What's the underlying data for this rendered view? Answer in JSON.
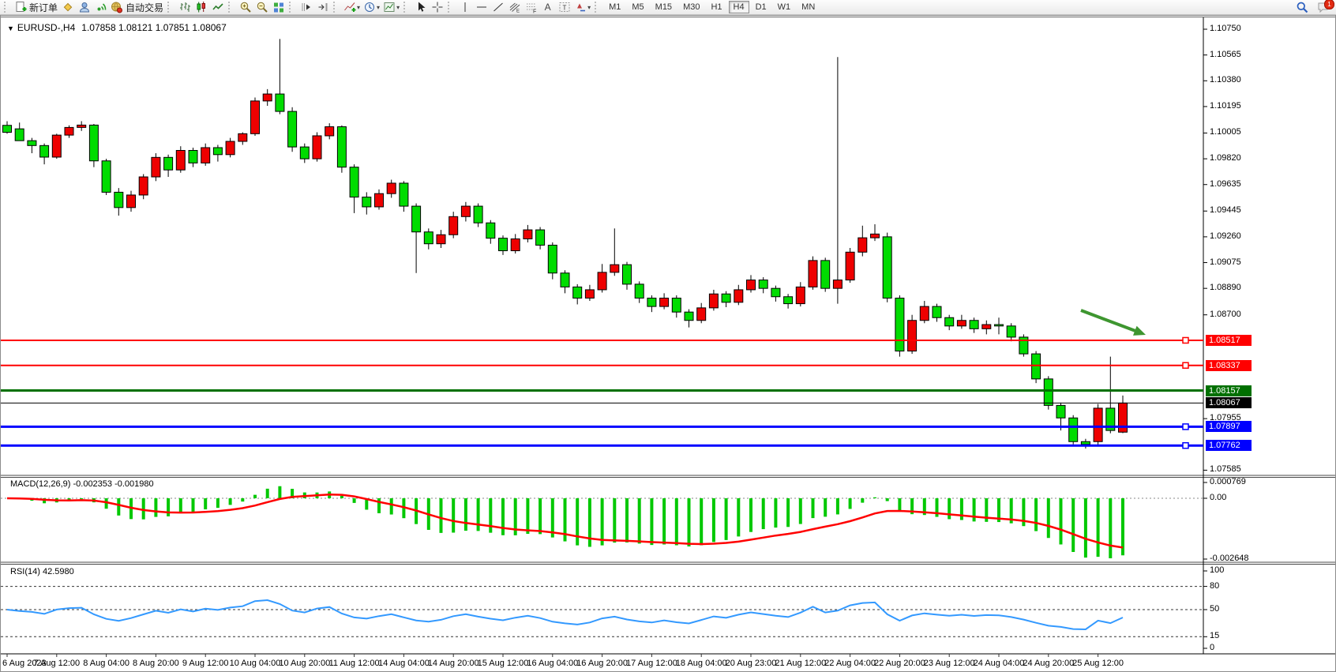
{
  "toolbar": {
    "new_order_label": "新订单",
    "auto_trading_label": "自动交易",
    "timeframes": [
      "M1",
      "M5",
      "M15",
      "M30",
      "H1",
      "H4",
      "D1",
      "W1",
      "MN"
    ],
    "active_timeframe": "H4",
    "notification_badge": "1",
    "text_tool_label": "A",
    "textbox_tool_label": "T",
    "grid_tool_label": "F",
    "channel_tool_label": "E"
  },
  "chart": {
    "title_symbol": "EURUSD-,H4",
    "title_ohlc": "1.07858 1.08121 1.07851 1.08067"
  },
  "price_axis": {
    "ticks": [
      "1.10750",
      "1.10565",
      "1.10380",
      "1.10195",
      "1.10005",
      "1.09820",
      "1.09635",
      "1.09445",
      "1.09260",
      "1.09075",
      "1.08890",
      "1.08700",
      "1.07955",
      "1.07585"
    ]
  },
  "macd_panel": {
    "label": "MACD(12,26,9)",
    "values": "-0.002353 -0.001980",
    "axis_labels": [
      "0.000769",
      "0.00",
      "-0.002648"
    ]
  },
  "rsi_panel": {
    "label": "RSI(14)",
    "value": "42.5980",
    "axis_labels": [
      "100",
      "80",
      "50",
      "15",
      "0"
    ]
  },
  "time_axis": {
    "labels": [
      "6 Aug 2023",
      "7 Aug 12:00",
      "8 Aug 04:00",
      "8 Aug 20:00",
      "9 Aug 12:00",
      "10 Aug 04:00",
      "10 Aug 20:00",
      "11 Aug 12:00",
      "14 Aug 04:00",
      "14 Aug 20:00",
      "15 Aug 12:00",
      "16 Aug 04:00",
      "16 Aug 20:00",
      "17 Aug 12:00",
      "18 Aug 04:00",
      "20 Aug 23:00",
      "21 Aug 12:00",
      "22 Aug 04:00",
      "22 Aug 20:00",
      "23 Aug 12:00",
      "24 Aug 04:00",
      "24 Aug 20:00",
      "25 Aug 12:00"
    ]
  },
  "colors": {
    "bull_body": "#EE0000",
    "bear_body": "#00DC00",
    "wick": "#000000",
    "macd_histogram": "#00C800",
    "macd_signal": "#FF0000",
    "rsi_line": "#3399FF",
    "background": "#FFFFFF"
  },
  "chart_data": {
    "type": "candlestick",
    "symbol": "EURUSD-",
    "timeframe": "H4",
    "last_ohlc": {
      "open": 1.07858,
      "high": 1.08121,
      "low": 1.07851,
      "close": 1.08067
    },
    "visible_price_range": [
      1.07585,
      1.1075
    ],
    "candles": [
      [
        1.1006,
        1.1009,
        1.1,
        1.1001
      ],
      [
        1.10035,
        1.1008,
        1.0999,
        1.0995
      ],
      [
        1.0995,
        1.0997,
        1.0986,
        1.09915
      ],
      [
        1.09915,
        1.0993,
        1.0978,
        1.09832
      ],
      [
        1.09832,
        1.1,
        1.0982,
        1.0999
      ],
      [
        1.0999,
        1.1006,
        1.0997,
        1.10045
      ],
      [
        1.10045,
        1.1009,
        1.1002,
        1.10062
      ],
      [
        1.10062,
        1.1007,
        1.0976,
        1.09805
      ],
      [
        1.09805,
        1.0982,
        1.0956,
        1.0958
      ],
      [
        1.0958,
        1.0961,
        1.09412,
        1.0947
      ],
      [
        1.0947,
        1.0959,
        1.0944,
        1.0956
      ],
      [
        1.0956,
        1.0971,
        1.0953,
        1.0969
      ],
      [
        1.0969,
        1.0986,
        1.0966,
        1.0983
      ],
      [
        1.0983,
        1.0985,
        1.0969,
        1.0974
      ],
      [
        1.0974,
        1.0991,
        1.0972,
        1.0988
      ],
      [
        1.0988,
        1.099,
        1.0976,
        1.0979
      ],
      [
        1.0979,
        1.0993,
        1.0977,
        1.099
      ],
      [
        1.099,
        1.0992,
        1.098,
        1.0985
      ],
      [
        1.0985,
        1.0997,
        1.0983,
        1.09945
      ],
      [
        1.09945,
        1.1001,
        1.0992,
        1.1
      ],
      [
        1.1,
        1.1026,
        1.09985,
        1.10235
      ],
      [
        1.10235,
        1.1032,
        1.102,
        1.10285
      ],
      [
        1.10285,
        1.1068,
        1.1014,
        1.1016
      ],
      [
        1.1016,
        1.1019,
        1.0987,
        1.09905
      ],
      [
        1.09905,
        1.0993,
        1.0979,
        1.0982
      ],
      [
        1.0982,
        1.1001,
        1.098,
        1.09985
      ],
      [
        1.09985,
        1.10075,
        1.0996,
        1.1005
      ],
      [
        1.1005,
        1.1006,
        1.0972,
        1.0976
      ],
      [
        1.0976,
        1.0978,
        1.0943,
        1.09545
      ],
      [
        1.09545,
        1.0958,
        1.0942,
        1.09475
      ],
      [
        1.09475,
        1.096,
        1.09455,
        1.0957
      ],
      [
        1.0957,
        1.0967,
        1.0954,
        1.09645
      ],
      [
        1.09645,
        1.0966,
        1.0944,
        1.0948
      ],
      [
        1.0948,
        1.095,
        1.09,
        1.09295
      ],
      [
        1.09295,
        1.0932,
        1.0917,
        1.0921
      ],
      [
        1.0921,
        1.0931,
        1.0918,
        1.09275
      ],
      [
        1.09275,
        1.0944,
        1.0925,
        1.09405
      ],
      [
        1.09405,
        1.0951,
        1.0937,
        1.0948
      ],
      [
        1.0948,
        1.095,
        1.0933,
        1.0936
      ],
      [
        1.0936,
        1.0938,
        1.0921,
        1.0925
      ],
      [
        1.0925,
        1.0927,
        1.0913,
        1.0916
      ],
      [
        1.0916,
        1.0928,
        1.0914,
        1.09245
      ],
      [
        1.09245,
        1.09345,
        1.0922,
        1.0931
      ],
      [
        1.0931,
        1.0933,
        1.0917,
        1.092
      ],
      [
        1.092,
        1.0922,
        1.08955,
        1.09
      ],
      [
        1.09,
        1.0902,
        1.08855,
        1.089
      ],
      [
        1.089,
        1.0892,
        1.08775,
        1.0882
      ],
      [
        1.0882,
        1.08915,
        1.088,
        1.0888
      ],
      [
        1.0888,
        1.09065,
        1.0886,
        1.09005
      ],
      [
        1.09005,
        1.0932,
        1.0898,
        1.0906
      ],
      [
        1.0906,
        1.0908,
        1.0888,
        1.0892
      ],
      [
        1.0892,
        1.0894,
        1.08785,
        1.0882
      ],
      [
        1.0882,
        1.0884,
        1.0872,
        1.0876
      ],
      [
        1.0876,
        1.08855,
        1.0874,
        1.0882
      ],
      [
        1.0882,
        1.0884,
        1.0868,
        1.0872
      ],
      [
        1.0872,
        1.0874,
        1.0861,
        1.0866
      ],
      [
        1.0866,
        1.08785,
        1.0864,
        1.0875
      ],
      [
        1.0875,
        1.0888,
        1.0873,
        1.0885
      ],
      [
        1.0885,
        1.0887,
        1.08755,
        1.0879
      ],
      [
        1.0879,
        1.08915,
        1.0877,
        1.0888
      ],
      [
        1.0888,
        1.08985,
        1.0886,
        1.0895
      ],
      [
        1.0895,
        1.0897,
        1.08855,
        1.0889
      ],
      [
        1.0889,
        1.0891,
        1.08795,
        1.0883
      ],
      [
        1.0883,
        1.0885,
        1.08745,
        1.0878
      ],
      [
        1.0878,
        1.08935,
        1.0876,
        1.089
      ],
      [
        1.089,
        1.0912,
        1.0888,
        1.0909
      ],
      [
        1.0909,
        1.0911,
        1.08865,
        1.0889
      ],
      [
        1.0889,
        1.1055,
        1.0878,
        1.0895
      ],
      [
        1.0895,
        1.0918,
        1.0893,
        1.0915
      ],
      [
        1.0915,
        1.0934,
        1.0912,
        1.09253
      ],
      [
        1.09253,
        1.0935,
        1.0923,
        1.0928
      ],
      [
        1.0926,
        1.0929,
        1.0879,
        1.0882
      ],
      [
        1.0882,
        1.0884,
        1.084,
        1.0844
      ],
      [
        1.0844,
        1.087,
        1.0842,
        1.0866
      ],
      [
        1.0866,
        1.088,
        1.0864,
        1.0876
      ],
      [
        1.0876,
        1.0878,
        1.0865,
        1.0868
      ],
      [
        1.0868,
        1.087,
        1.0859,
        1.0862
      ],
      [
        1.0862,
        1.087,
        1.086,
        1.0866
      ],
      [
        1.0866,
        1.0868,
        1.0857,
        1.086
      ],
      [
        1.086,
        1.0866,
        1.0856,
        1.0863
      ],
      [
        1.0863,
        1.0868,
        1.0856,
        1.0862
      ],
      [
        1.0862,
        1.0864,
        1.0851,
        1.0854
      ],
      [
        1.0854,
        1.0856,
        1.084,
        1.0842
      ],
      [
        1.0842,
        1.0844,
        1.0821,
        1.0824
      ],
      [
        1.0824,
        1.0826,
        1.0802,
        1.0805
      ],
      [
        1.0805,
        1.0807,
        1.0787,
        1.0796
      ],
      [
        1.0796,
        1.0798,
        1.0777,
        1.0779
      ],
      [
        1.0779,
        1.0781,
        1.0774,
        1.0777
      ],
      [
        1.0779,
        1.0806,
        1.0776,
        1.0803
      ],
      [
        1.0803,
        1.084,
        1.0785,
        1.0787
      ],
      [
        1.07858,
        1.08121,
        1.07851,
        1.08067
      ]
    ],
    "horizontal_lines": [
      {
        "price": 1.08517,
        "label": "1.08517",
        "color": "#FF0000",
        "width": 2,
        "handle": true
      },
      {
        "price": 1.08337,
        "label": "1.08337",
        "color": "#FF0000",
        "width": 2,
        "handle": true
      },
      {
        "price": 1.08157,
        "label": "1.08157",
        "color": "#007000",
        "width": 3,
        "handle": false
      },
      {
        "price": 1.08067,
        "label": "1.08067",
        "color": "#000000",
        "width": 1,
        "handle": false,
        "role": "current-price"
      },
      {
        "price": 1.07897,
        "label": "1.07897",
        "color": "#0000FF",
        "width": 3,
        "handle": true
      },
      {
        "price": 1.07762,
        "label": "1.07762",
        "color": "#0000FF",
        "width": 3,
        "handle": true
      }
    ],
    "annotations": [
      {
        "type": "arrow",
        "from": [
          1368,
          373
        ],
        "to": [
          1450,
          404
        ],
        "color": "#3E9630"
      }
    ],
    "indicators": [
      {
        "type": "MACD",
        "params": [
          12,
          26,
          9
        ],
        "current_values": [
          -0.002353,
          -0.00198
        ],
        "axis": [
          0.000769,
          0.0,
          -0.002648
        ]
      },
      {
        "type": "RSI",
        "params": [
          14
        ],
        "current_value": 42.598,
        "levels": [
          80,
          50,
          15
        ],
        "axis_range": [
          0,
          100
        ]
      }
    ]
  }
}
